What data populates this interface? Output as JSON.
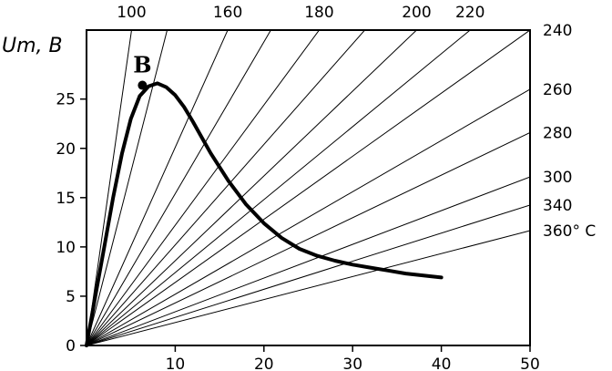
{
  "chart_data": {
    "type": "line",
    "ylabel": "Um, B",
    "xlim": [
      0,
      50
    ],
    "ylim": [
      0,
      32
    ],
    "x_ticks": [
      10,
      20,
      30,
      40,
      50
    ],
    "y_ticks": [
      0,
      5,
      10,
      15,
      20,
      25
    ],
    "colors": {
      "curve": "#000000",
      "rays": "#000000",
      "frame": "#000000"
    },
    "series": [
      {
        "x": [
          0,
          1,
          2,
          3,
          4,
          5,
          6,
          7,
          8,
          9,
          10,
          11,
          12,
          13,
          14,
          16,
          18,
          20,
          22,
          24,
          26,
          28,
          30,
          32,
          34,
          36,
          38,
          40
        ],
        "y": [
          0,
          5,
          10,
          15,
          19.5,
          23,
          25.3,
          26.3,
          26.6,
          26.2,
          25.4,
          24.2,
          22.7,
          21.1,
          19.5,
          16.7,
          14.3,
          12.4,
          10.9,
          9.8,
          9.1,
          8.6,
          8.2,
          7.9,
          7.6,
          7.3,
          7.1,
          6.9
        ]
      }
    ],
    "point": {
      "label": "B",
      "x": 6.3,
      "y": 26.4
    },
    "rays": [
      {
        "label": "100",
        "slope": 6.3
      },
      {
        "label": "",
        "slope": 3.52
      },
      {
        "label": "160",
        "slope": 2.01
      },
      {
        "label": "",
        "slope": 1.54
      },
      {
        "label": "180",
        "slope": 1.22
      },
      {
        "label": "",
        "slope": 1.02
      },
      {
        "label": "200",
        "slope": 0.86
      },
      {
        "label": "220",
        "slope": 0.74
      },
      {
        "label": "240",
        "slope": 0.64
      },
      {
        "label": "260",
        "slope": 0.52
      },
      {
        "label": "280",
        "slope": 0.432
      },
      {
        "label": "300",
        "slope": 0.342
      },
      {
        "label": "340",
        "slope": 0.285
      },
      {
        "label": "360° C",
        "slope": 0.233
      }
    ]
  }
}
